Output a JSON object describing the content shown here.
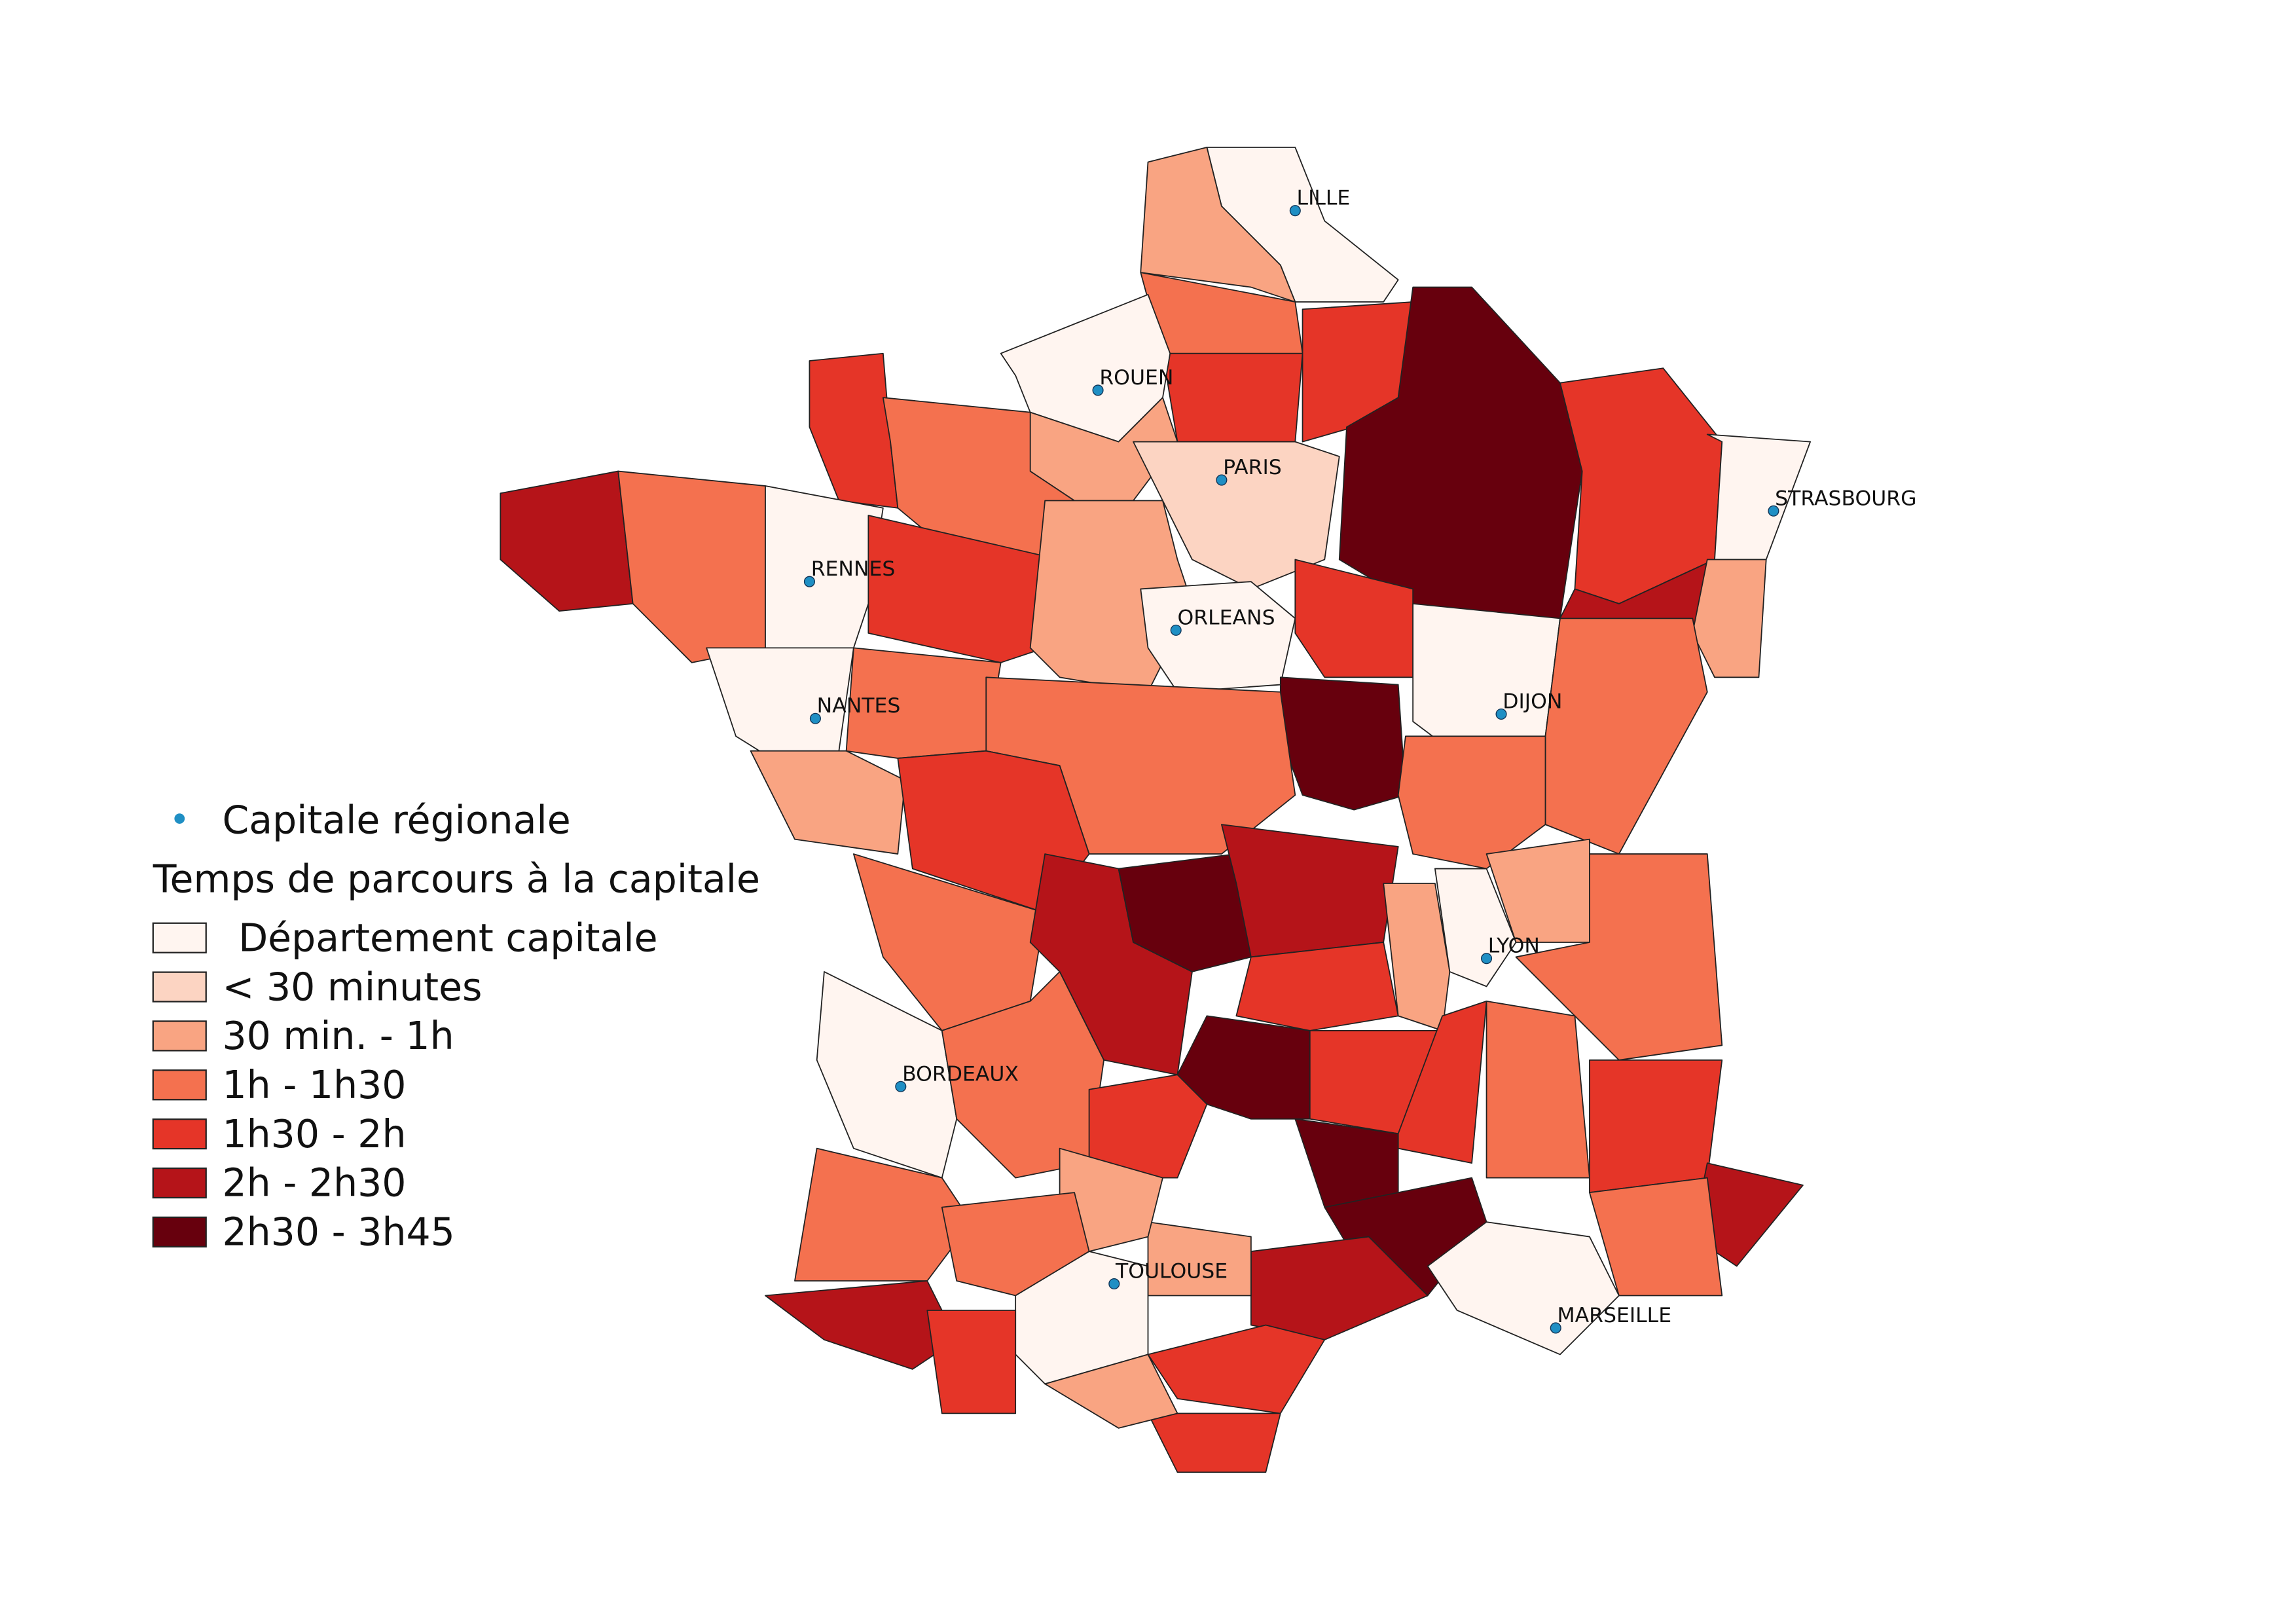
{
  "map": {
    "cities": [
      "LILLE",
      "ROUEN",
      "PARIS",
      "STRASBOURG",
      "RENNES",
      "ORLEANS",
      "NANTES",
      "DIJON",
      "LYON",
      "BORDEAUX",
      "TOULOUSE",
      "MARSEILLE"
    ],
    "city_color": "#1f8fc4",
    "legend": {
      "point_label": "Capitale régionale",
      "title": "Temps de parcours à la capitale",
      "items": [
        {
          "label": "Département capitale",
          "color": "#fff5f0"
        },
        {
          "label": "< 30 minutes",
          "color": "#fcd4c2"
        },
        {
          "label": "30 min. - 1h",
          "color": "#f9a482"
        },
        {
          "label": "1h - 1h30",
          "color": "#f4714f"
        },
        {
          "label": "1h30 - 2h",
          "color": "#e53528"
        },
        {
          "label": "2h - 2h30",
          "color": "#b51419"
        },
        {
          "label": "2h30 - 3h45",
          "color": "#67000d"
        }
      ]
    }
  }
}
